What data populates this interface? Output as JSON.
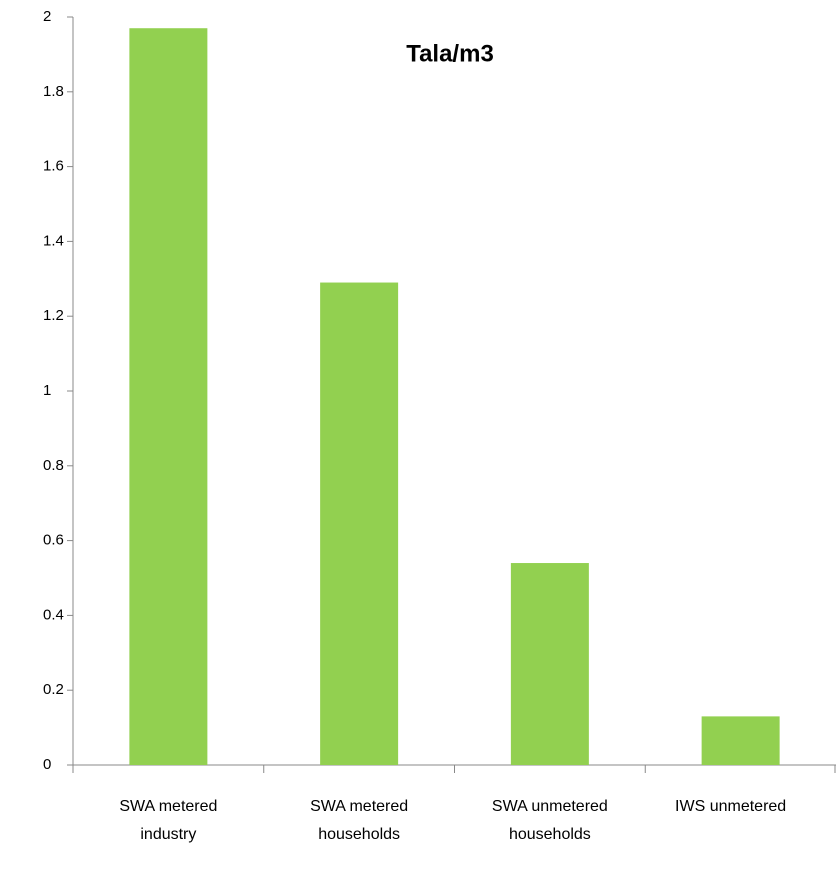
{
  "chart_data": {
    "type": "bar",
    "title": "Tala/m3",
    "categories": [
      "SWA metered industry",
      "SWA metered households",
      "SWA unmetered households",
      "IWS unmetered"
    ],
    "values": [
      1.97,
      1.29,
      0.54,
      0.13
    ],
    "color": "#92d050",
    "ylim": [
      0,
      2
    ],
    "yticks": [
      0,
      0.2,
      0.4,
      0.6,
      0.8,
      1,
      1.2,
      1.4,
      1.6,
      1.8,
      2
    ],
    "grid": false
  }
}
